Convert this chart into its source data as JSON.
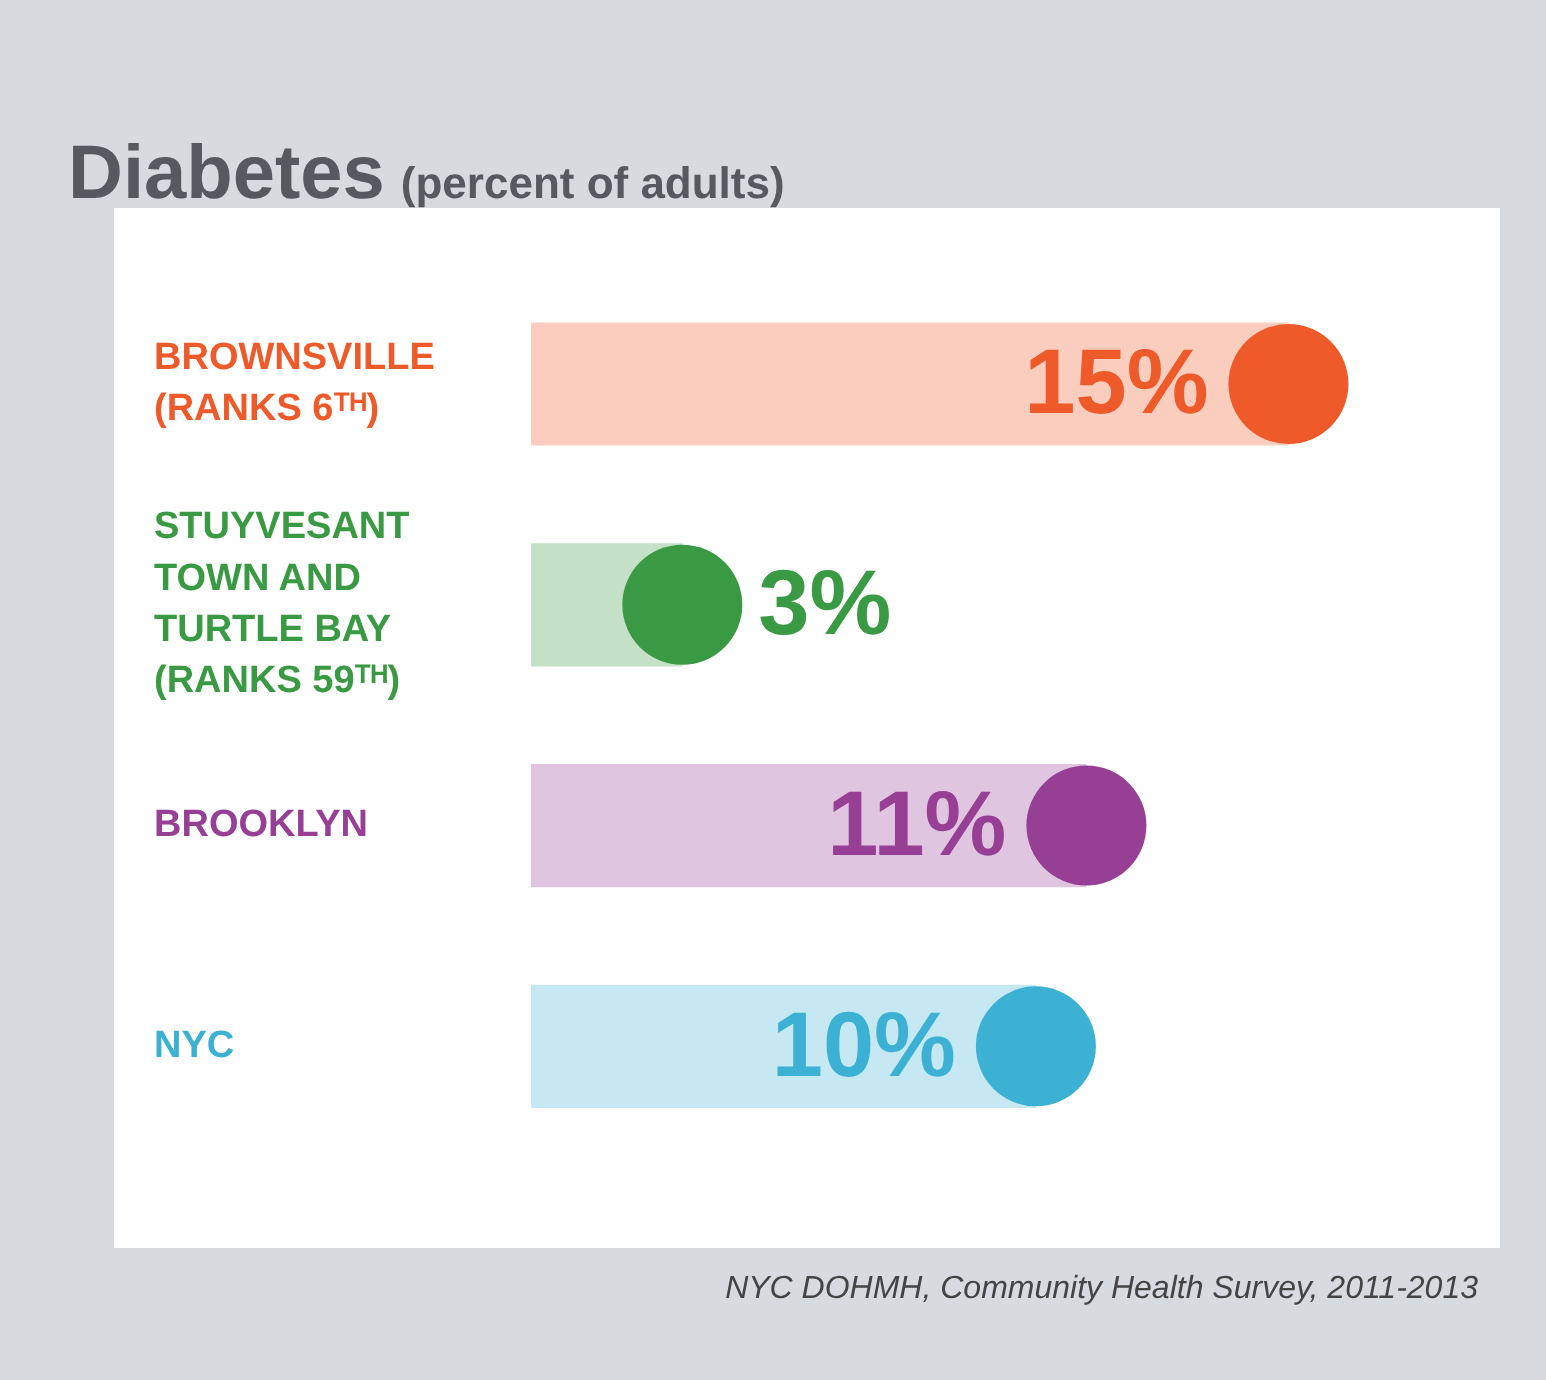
{
  "chart_data": {
    "type": "bar",
    "orientation": "horizontal",
    "title": "Diabetes",
    "subtitle": "(percent of adults)",
    "categories": [
      "BROWNSVILLE (RANKS 6ᵀᴴ)",
      "STUYVESANT TOWN AND TURTLE BAY (RANKS 59ᵀᴴ)",
      "BROOKLYN",
      "NYC"
    ],
    "series": [
      {
        "values": [
          15,
          3,
          11,
          10
        ],
        "colors": [
          "#facdbf",
          "#c4e1c7",
          "#dfc5df",
          "#c5e8f2"
        ],
        "value_labels": [
          "15%",
          "3%",
          "11%",
          "10%"
        ]
      },
      {
        "type": "scatter",
        "values": [
          15,
          3,
          11,
          10
        ],
        "colors": [
          "#ee5a29",
          "#3a9a43",
          "#963f95",
          "#3cb1d4"
        ]
      }
    ],
    "marker": "circle",
    "tick_labels": "y",
    "legend": false,
    "annotations": [
      "NYC DOHMH, Community Health Survey, 2011-2013"
    ]
  }
}
